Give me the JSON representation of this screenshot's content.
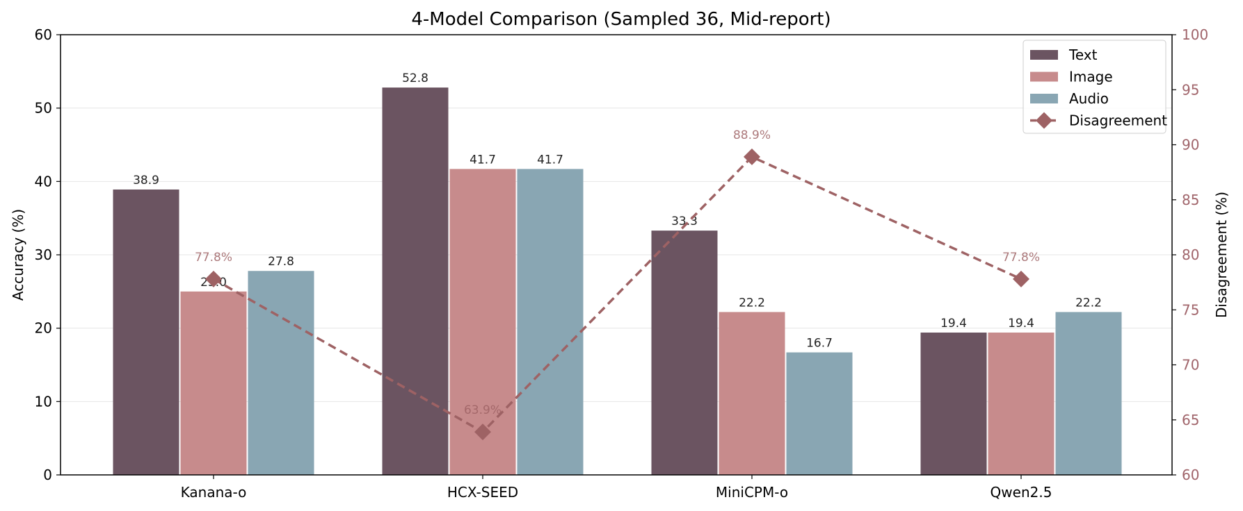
{
  "chart_data": {
    "type": "bar",
    "title": "4-Model Comparison (Sampled 36, Mid-report)",
    "categories": [
      "Kanana-o",
      "HCX-SEED",
      "MiniCPM-o",
      "Qwen2.5"
    ],
    "series": [
      {
        "name": "Text",
        "values": [
          38.9,
          52.8,
          33.3,
          19.4
        ],
        "color": "#6b5461"
      },
      {
        "name": "Image",
        "values": [
          25.0,
          41.7,
          22.2,
          19.4
        ],
        "color": "#c78b8c"
      },
      {
        "name": "Audio",
        "values": [
          27.8,
          41.7,
          16.7,
          22.2
        ],
        "color": "#89a6b3"
      }
    ],
    "bar_labels": [
      [
        "38.9",
        "52.8",
        "33.3",
        "19.4"
      ],
      [
        "25.0",
        "41.7",
        "22.2",
        "19.4"
      ],
      [
        "27.8",
        "41.7",
        "16.7",
        "22.2"
      ]
    ],
    "line_series": {
      "name": "Disagreement",
      "values": [
        77.8,
        63.9,
        88.9,
        77.8
      ],
      "labels": [
        "77.8%",
        "63.9%",
        "88.9%",
        "77.8%"
      ],
      "color": "#9e6264",
      "style": "dashed",
      "marker": "diamond"
    },
    "ylabel": "Accuracy (%)",
    "ylim": [
      0,
      60
    ],
    "yticks": [
      0,
      10,
      20,
      30,
      40,
      50,
      60
    ],
    "y2label": "Disagreement (%)",
    "y2lim": [
      60,
      100
    ],
    "y2ticks": [
      60,
      65,
      70,
      75,
      80,
      85,
      90,
      95,
      100
    ],
    "grid": true,
    "legend_position": "top-right",
    "y2_color": "#a0646a"
  }
}
